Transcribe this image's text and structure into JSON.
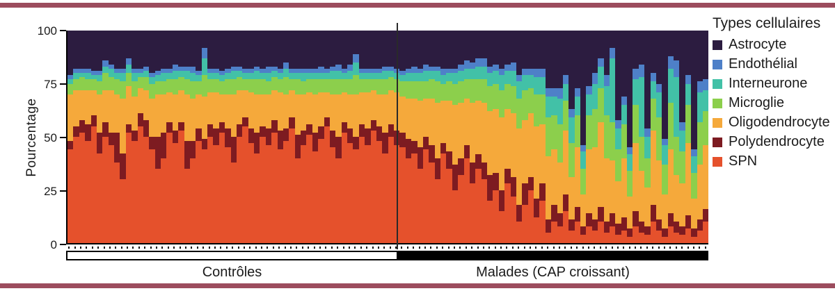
{
  "frame": {
    "rule_color": "#9c4c5e"
  },
  "chart_data": {
    "type": "bar",
    "subtype": "stacked-percentage-per-individual",
    "ylabel": "Pourcentage",
    "ylim": [
      0,
      100
    ],
    "yticks": [
      0,
      25,
      50,
      75,
      100
    ],
    "grid": false,
    "legend_title": "Types cellulaires",
    "legend_position": "right",
    "series": [
      {
        "name": "Astrocyte",
        "color": "#2c1c40"
      },
      {
        "name": "Endothélial",
        "color": "#4e80c8"
      },
      {
        "name": "Interneurone",
        "color": "#42c1a7"
      },
      {
        "name": "Microglie",
        "color": "#8ccf4c"
      },
      {
        "name": "Oligodendrocyte",
        "color": "#f5a93b"
      },
      {
        "name": "Polydendrocyte",
        "color": "#7d1b21"
      },
      {
        "name": "SPN",
        "color": "#e5512c"
      }
    ],
    "stack_order_bottom_to_top": [
      "SPN",
      "Polydendrocyte",
      "Oligodendrocyte",
      "Microglie",
      "Interneurone",
      "Endothélial",
      "Astrocyte"
    ],
    "groups": [
      {
        "label": "Contrôles",
        "marker_fill": "#ffffff",
        "bar_count": 57
      },
      {
        "label": "Malades (CAP croissant)",
        "marker_fill": "#000000",
        "bar_count": 53
      }
    ],
    "bars": [
      [
        44,
        4,
        22,
        5,
        2,
        2,
        21
      ],
      [
        50,
        5,
        17,
        5,
        3,
        2,
        18
      ],
      [
        52,
        6,
        14,
        6,
        2,
        2,
        18
      ],
      [
        48,
        8,
        16,
        5,
        3,
        2,
        18
      ],
      [
        55,
        5,
        12,
        5,
        2,
        2,
        19
      ],
      [
        42,
        10,
        18,
        6,
        3,
        2,
        19
      ],
      [
        50,
        7,
        15,
        8,
        3,
        3,
        14
      ],
      [
        46,
        6,
        20,
        6,
        4,
        2,
        16
      ],
      [
        38,
        14,
        18,
        7,
        3,
        2,
        18
      ],
      [
        30,
        12,
        26,
        8,
        4,
        2,
        18
      ],
      [
        52,
        4,
        18,
        6,
        4,
        3,
        13
      ],
      [
        48,
        5,
        16,
        7,
        4,
        2,
        18
      ],
      [
        55,
        6,
        12,
        5,
        2,
        2,
        18
      ],
      [
        50,
        8,
        14,
        6,
        3,
        2,
        17
      ],
      [
        44,
        6,
        18,
        7,
        3,
        2,
        20
      ],
      [
        35,
        15,
        20,
        6,
        3,
        2,
        19
      ],
      [
        40,
        12,
        18,
        6,
        4,
        2,
        18
      ],
      [
        52,
        5,
        14,
        6,
        3,
        2,
        18
      ],
      [
        47,
        6,
        17,
        7,
        4,
        3,
        16
      ],
      [
        53,
        4,
        15,
        6,
        3,
        2,
        17
      ],
      [
        35,
        13,
        22,
        7,
        4,
        2,
        17
      ],
      [
        40,
        8,
        20,
        8,
        4,
        3,
        17
      ],
      [
        48,
        6,
        16,
        6,
        3,
        2,
        19
      ],
      [
        44,
        5,
        20,
        10,
        8,
        5,
        8
      ],
      [
        50,
        6,
        15,
        6,
        3,
        2,
        18
      ],
      [
        46,
        8,
        17,
        6,
        3,
        2,
        18
      ],
      [
        52,
        5,
        13,
        6,
        3,
        2,
        19
      ],
      [
        45,
        9,
        16,
        7,
        3,
        2,
        18
      ],
      [
        38,
        12,
        20,
        7,
        4,
        2,
        17
      ],
      [
        50,
        6,
        16,
        6,
        3,
        2,
        17
      ],
      [
        55,
        4,
        13,
        5,
        3,
        2,
        18
      ],
      [
        47,
        7,
        17,
        6,
        3,
        2,
        18
      ],
      [
        42,
        10,
        18,
        7,
        4,
        2,
        17
      ],
      [
        50,
        5,
        15,
        7,
        3,
        2,
        18
      ],
      [
        46,
        8,
        16,
        6,
        4,
        3,
        17
      ],
      [
        52,
        6,
        14,
        6,
        3,
        2,
        17
      ],
      [
        44,
        9,
        18,
        6,
        3,
        2,
        18
      ],
      [
        48,
        6,
        16,
        8,
        4,
        3,
        15
      ],
      [
        54,
        5,
        13,
        5,
        3,
        2,
        18
      ],
      [
        40,
        11,
        19,
        7,
        3,
        2,
        18
      ],
      [
        46,
        7,
        17,
        6,
        4,
        2,
        18
      ],
      [
        51,
        5,
        15,
        6,
        3,
        2,
        18
      ],
      [
        43,
        9,
        18,
        7,
        3,
        2,
        18
      ],
      [
        49,
        6,
        16,
        6,
        3,
        3,
        17
      ],
      [
        55,
        4,
        12,
        6,
        3,
        2,
        18
      ],
      [
        45,
        8,
        17,
        7,
        4,
        2,
        17
      ],
      [
        40,
        10,
        20,
        7,
        4,
        3,
        16
      ],
      [
        52,
        5,
        14,
        6,
        3,
        2,
        18
      ],
      [
        47,
        7,
        16,
        7,
        4,
        3,
        16
      ],
      [
        44,
        6,
        20,
        9,
        6,
        4,
        11
      ],
      [
        50,
        6,
        15,
        6,
        3,
        2,
        18
      ],
      [
        46,
        8,
        17,
        6,
        3,
        2,
        18
      ],
      [
        53,
        5,
        14,
        5,
        3,
        2,
        18
      ],
      [
        48,
        7,
        15,
        7,
        3,
        2,
        18
      ],
      [
        42,
        10,
        18,
        7,
        4,
        2,
        17
      ],
      [
        50,
        6,
        16,
        6,
        3,
        2,
        17
      ],
      [
        46,
        7,
        18,
        6,
        3,
        2,
        18
      ],
      [
        45,
        7,
        17,
        7,
        3,
        2,
        19
      ],
      [
        40,
        9,
        19,
        8,
        4,
        2,
        18
      ],
      [
        42,
        6,
        20,
        8,
        4,
        3,
        17
      ],
      [
        35,
        10,
        22,
        9,
        4,
        2,
        18
      ],
      [
        44,
        6,
        18,
        8,
        5,
        3,
        16
      ],
      [
        38,
        8,
        22,
        9,
        4,
        2,
        17
      ],
      [
        30,
        10,
        26,
        10,
        5,
        2,
        17
      ],
      [
        42,
        5,
        20,
        8,
        4,
        3,
        18
      ],
      [
        35,
        8,
        24,
        9,
        4,
        2,
        18
      ],
      [
        25,
        12,
        28,
        10,
        5,
        2,
        18
      ],
      [
        32,
        8,
        26,
        10,
        5,
        3,
        16
      ],
      [
        40,
        6,
        22,
        9,
        5,
        4,
        14
      ],
      [
        28,
        10,
        28,
        11,
        5,
        3,
        15
      ],
      [
        35,
        7,
        25,
        10,
        6,
        4,
        13
      ],
      [
        30,
        8,
        28,
        11,
        6,
        4,
        13
      ],
      [
        20,
        12,
        30,
        12,
        6,
        3,
        17
      ],
      [
        25,
        8,
        30,
        12,
        6,
        3,
        16
      ],
      [
        15,
        10,
        34,
        13,
        7,
        3,
        18
      ],
      [
        28,
        7,
        28,
        12,
        6,
        3,
        16
      ],
      [
        22,
        9,
        30,
        13,
        7,
        4,
        15
      ],
      [
        10,
        8,
        36,
        14,
        8,
        3,
        21
      ],
      [
        18,
        10,
        30,
        14,
        7,
        3,
        18
      ],
      [
        25,
        6,
        30,
        12,
        6,
        3,
        18
      ],
      [
        12,
        9,
        34,
        15,
        8,
        4,
        18
      ],
      [
        20,
        8,
        28,
        14,
        8,
        4,
        18
      ],
      [
        5,
        6,
        30,
        18,
        10,
        4,
        27
      ],
      [
        10,
        8,
        26,
        16,
        9,
        4,
        27
      ],
      [
        8,
        6,
        24,
        18,
        12,
        5,
        27
      ],
      [
        15,
        8,
        30,
        14,
        8,
        4,
        21
      ],
      [
        6,
        5,
        20,
        16,
        12,
        4,
        37
      ],
      [
        10,
        7,
        28,
        15,
        9,
        4,
        27
      ],
      [
        4,
        4,
        15,
        12,
        8,
        3,
        54
      ],
      [
        8,
        6,
        30,
        16,
        10,
        4,
        26
      ],
      [
        6,
        5,
        34,
        18,
        12,
        5,
        20
      ],
      [
        10,
        7,
        40,
        16,
        10,
        4,
        13
      ],
      [
        5,
        5,
        30,
        20,
        14,
        5,
        21
      ],
      [
        8,
        6,
        25,
        18,
        30,
        5,
        8
      ],
      [
        4,
        5,
        20,
        15,
        10,
        4,
        42
      ],
      [
        6,
        6,
        28,
        16,
        9,
        4,
        31
      ],
      [
        3,
        4,
        15,
        12,
        8,
        3,
        55
      ],
      [
        8,
        7,
        32,
        18,
        12,
        5,
        18
      ],
      [
        5,
        5,
        24,
        16,
        28,
        6,
        16
      ],
      [
        4,
        4,
        18,
        14,
        10,
        4,
        46
      ],
      [
        10,
        8,
        35,
        15,
        8,
        4,
        20
      ],
      [
        6,
        5,
        28,
        20,
        12,
        4,
        25
      ],
      [
        3,
        4,
        16,
        14,
        9,
        3,
        51
      ],
      [
        8,
        6,
        30,
        22,
        16,
        6,
        12
      ],
      [
        5,
        5,
        22,
        18,
        28,
        8,
        14
      ],
      [
        4,
        4,
        20,
        15,
        10,
        4,
        43
      ],
      [
        7,
        6,
        34,
        18,
        10,
        4,
        21
      ],
      [
        3,
        4,
        14,
        12,
        8,
        3,
        56
      ],
      [
        6,
        5,
        26,
        20,
        14,
        5,
        24
      ],
      [
        10,
        6,
        30,
        16,
        10,
        5,
        23
      ]
    ]
  }
}
